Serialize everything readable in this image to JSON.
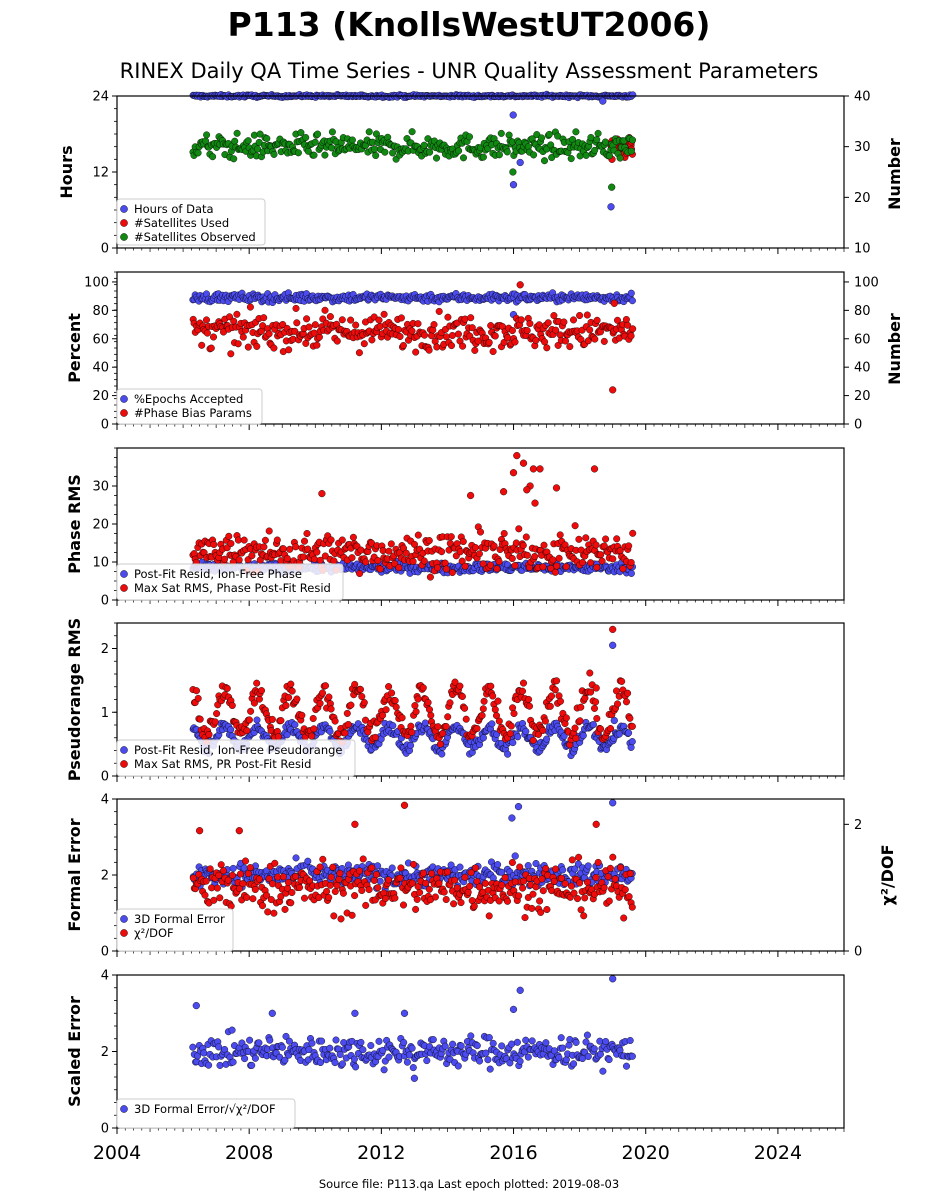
{
  "title": "P113 (KnollsWestUT2006)",
  "subtitle": "RINEX Daily QA Time Series - UNR Quality Assessment Parameters",
  "footer": "Source file: P113.qa Last epoch plotted: 2019-08-03",
  "colors": {
    "blue": "#4b4bef",
    "red": "#ee0b0b",
    "green": "#118811"
  },
  "chart_data": [
    {
      "type": "scatter",
      "xlim": [
        2004,
        2026
      ],
      "x_range": [
        2006.3,
        2019.6
      ],
      "xticks": [
        "2004",
        "2008",
        "2012",
        "2016",
        "2020",
        "2024"
      ],
      "ylabel": "Hours",
      "ylim": [
        0,
        24
      ],
      "yticks": [
        "0",
        "12",
        "24"
      ],
      "y2label": "Number",
      "y2lim": [
        10,
        40
      ],
      "y2ticks": [
        "10",
        "20",
        "30",
        "40"
      ],
      "legend": [
        "Hours of Data",
        "#Satellites Used",
        "#Satellites Observed"
      ],
      "series": [
        {
          "name": "Hours of Data",
          "axis": "left",
          "typical": 24,
          "spread": 0.1,
          "outliers": [
            [
              2015.99,
              21
            ],
            [
              2016.0,
              10
            ],
            [
              2016.2,
              13.5
            ],
            [
              2018.95,
              6.5
            ],
            [
              2018.7,
              23.2
            ]
          ]
        },
        {
          "name": "#Satellites Used",
          "axis": "right",
          "typical": 30,
          "spread": 1,
          "start": 2018.95,
          "outliers": [
            [
              2018.98,
              27.5
            ]
          ]
        },
        {
          "name": "#Satellites Observed",
          "axis": "right",
          "typical": 30,
          "spread": 1.2,
          "outliers": [
            [
              2015.98,
              25
            ],
            [
              2018.97,
              22
            ]
          ]
        }
      ]
    },
    {
      "type": "scatter",
      "ylabel": "Percent",
      "ylim": [
        0,
        107
      ],
      "yticks": [
        "0",
        "20",
        "40",
        "60",
        "80",
        "100"
      ],
      "y2label": "Number",
      "y2ticks": [
        "0",
        "20",
        "40",
        "60",
        "80",
        "100"
      ],
      "legend": [
        "%Epochs Accepted",
        "#Phase Bias Params"
      ],
      "series": [
        {
          "name": "%Epochs Accepted",
          "axis": "left",
          "typical": 89,
          "spread": 1.5,
          "outliers": [
            [
              2016.0,
              77
            ]
          ]
        },
        {
          "name": "#Phase Bias Params",
          "axis": "right",
          "typical": 65,
          "spread": 6,
          "outliers": [
            [
              2016.2,
              98
            ],
            [
              2019.0,
              24
            ],
            [
              2019.05,
              85
            ]
          ]
        }
      ]
    },
    {
      "type": "scatter",
      "ylabel": "Phase RMS",
      "ylim": [
        0,
        40
      ],
      "yticks": [
        "0",
        "10",
        "20",
        "30"
      ],
      "legend": [
        "Post-Fit Resid, Ion-Free Phase",
        "Max Sat RMS, Phase Post-Fit Resid"
      ],
      "series": [
        {
          "name": "Post-Fit Resid, Ion-Free Phase",
          "typical": 8.5,
          "spread": 0.6
        },
        {
          "name": "Max Sat RMS, Phase Post-Fit Resid",
          "typical": 12.5,
          "spread": 2.5,
          "outliers": [
            [
              2016.1,
              38
            ],
            [
              2016.0,
              33.5
            ],
            [
              2016.3,
              36
            ],
            [
              2016.6,
              34.5
            ],
            [
              2016.8,
              34.5
            ],
            [
              2016.5,
              30
            ],
            [
              2016.4,
              29
            ],
            [
              2017.3,
              29.5
            ],
            [
              2018.45,
              34.5
            ],
            [
              2015.7,
              28.5
            ],
            [
              2010.2,
              28
            ],
            [
              2014.7,
              27.5
            ],
            [
              2016.65,
              25.5
            ]
          ]
        }
      ]
    },
    {
      "type": "scatter",
      "ylabel": "Pseudorange RMS",
      "ylim": [
        0,
        2.4
      ],
      "yticks": [
        "0",
        "1",
        "2"
      ],
      "legend": [
        "Post-Fit Resid, Ion-Free Pseudorange",
        "Max Sat RMS, PR Post-Fit Resid"
      ],
      "series": [
        {
          "name": "Post-Fit Resid, Ion-Free Pseudorange",
          "typical": 0.6,
          "spread": 0.12,
          "outliers": [
            [
              2019.0,
              2.05
            ],
            [
              2019.05,
              0.87
            ]
          ]
        },
        {
          "name": "Max Sat RMS, PR Post-Fit Resid",
          "typical": 1.0,
          "spread": 0.25,
          "outliers": [
            [
              2019.0,
              2.3
            ],
            [
              2018.5,
              1.38
            ]
          ]
        }
      ]
    },
    {
      "type": "scatter",
      "ylabel": "Formal Error",
      "ylim": [
        0,
        4
      ],
      "yticks": [
        "0",
        "2",
        "4"
      ],
      "y2label": "χ²/DOF",
      "y2ticks": [
        "0",
        "2"
      ],
      "legend": [
        "3D Formal Error",
        "χ²/DOF"
      ],
      "series": [
        {
          "name": "3D Formal Error",
          "axis": "left",
          "typical": 2.0,
          "spread": 0.15,
          "outliers": [
            [
              2015.95,
              3.5
            ],
            [
              2016.15,
              3.8
            ],
            [
              2019.0,
              3.9
            ],
            [
              2016.05,
              2.5
            ]
          ]
        },
        {
          "name": "χ²/DOF",
          "axis": "right",
          "typical": 1.0,
          "spread": 0.2,
          "outliers": [
            [
              2012.7,
              2.3
            ],
            [
              2011.2,
              2.0
            ],
            [
              2018.5,
              2.0
            ],
            [
              2006.5,
              1.9
            ],
            [
              2007.7,
              1.9
            ]
          ]
        }
      ]
    },
    {
      "type": "scatter",
      "ylabel": "Scaled Error",
      "ylim": [
        0,
        4
      ],
      "yticks": [
        "0",
        "2",
        "4"
      ],
      "legend": [
        "3D Formal Error/√χ²/DOF"
      ],
      "series": [
        {
          "name": "3D Formal Error/√χ²/DOF",
          "typical": 2.0,
          "spread": 0.2,
          "outliers": [
            [
              2006.4,
              3.2
            ],
            [
              2016.2,
              3.6
            ],
            [
              2019.0,
              3.9
            ],
            [
              2016.0,
              3.1
            ],
            [
              2012.7,
              3.0
            ],
            [
              2008.7,
              3.0
            ],
            [
              2011.2,
              3.0
            ],
            [
              2013.0,
              1.3
            ]
          ]
        }
      ]
    }
  ]
}
